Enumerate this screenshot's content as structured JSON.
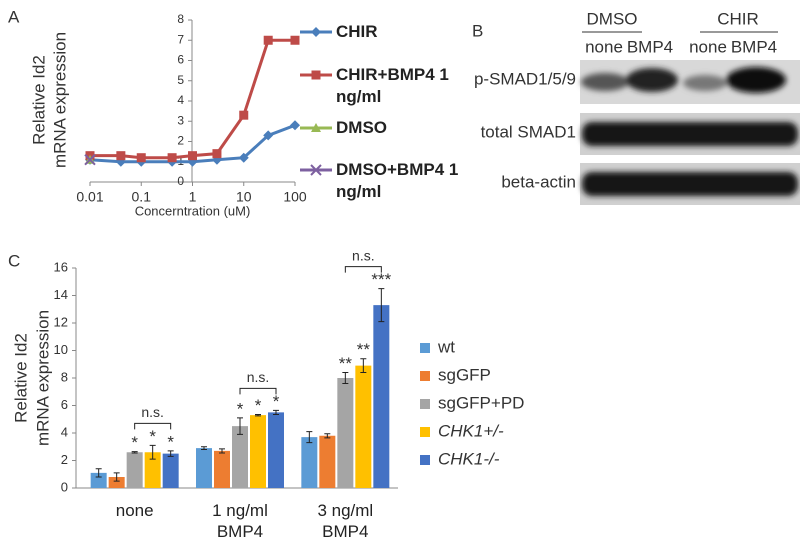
{
  "panels": [
    "A",
    "B",
    "C"
  ],
  "chart_data": [
    {
      "type": "line",
      "xlabel": "Concerntration (uM)",
      "ylabel": [
        "Relative Id2",
        "mRNA expression"
      ],
      "x": [
        0.01,
        0.04,
        0.1,
        0.4,
        1,
        3,
        10,
        30,
        100
      ],
      "xscale": "log",
      "xlim": [
        0.01,
        100
      ],
      "xticks": [
        0.01,
        0.1,
        1,
        10,
        100
      ],
      "ylim": [
        0,
        8
      ],
      "yticks": [
        0,
        1,
        2,
        3,
        4,
        5,
        6,
        7,
        8
      ],
      "legend": "right",
      "series": [
        {
          "name": "CHIR",
          "color": "#4a7ebb",
          "marker": "diamond",
          "values": [
            1.1,
            1.0,
            1.0,
            1.0,
            1.0,
            1.1,
            1.2,
            2.3,
            2.8
          ]
        },
        {
          "name": "CHIR+BMP4 1 ng/ml",
          "color": "#be4b48",
          "marker": "square",
          "values": [
            1.3,
            1.3,
            1.2,
            1.2,
            1.3,
            1.4,
            3.3,
            7.0,
            7.0
          ]
        },
        {
          "name": "DMSO",
          "color": "#98b954",
          "marker": "triangle",
          "values": [
            1.1,
            null,
            null,
            null,
            null,
            null,
            null,
            null,
            null
          ]
        },
        {
          "name": "DMSO+BMP4 1 ng/ml",
          "color": "#7d60a0",
          "marker": "x",
          "values": [
            1.1,
            null,
            null,
            null,
            null,
            null,
            null,
            null,
            null
          ]
        }
      ]
    },
    {
      "type": "bar",
      "ylabel": [
        "Relative Id2",
        "mRNA expression"
      ],
      "categories": [
        "none",
        "1 ng/ml BMP4",
        "3 ng/ml BMP4"
      ],
      "ylim": [
        0,
        16
      ],
      "yticks": [
        0,
        2,
        4,
        6,
        8,
        10,
        12,
        14,
        16
      ],
      "legend": "right",
      "annotations": [
        "n.s.",
        "n.s.",
        "n.s."
      ],
      "series": [
        {
          "name": "wt",
          "color": "#5b9bd5",
          "values": [
            1.1,
            2.9,
            3.7
          ],
          "errors": [
            0.3,
            0.1,
            0.4
          ]
        },
        {
          "name": "sgGFP",
          "color": "#ed7d31",
          "values": [
            0.8,
            2.7,
            3.8
          ],
          "errors": [
            0.3,
            0.15,
            0.15
          ]
        },
        {
          "name": "sgGFP+PD",
          "color": "#a5a5a5",
          "values": [
            2.6,
            4.5,
            8.0
          ],
          "errors": [
            0.05,
            0.6,
            0.4
          ],
          "significance": [
            "*",
            "*",
            "**"
          ]
        },
        {
          "name": "CHK1+/-",
          "color": "#ffc000",
          "values": [
            2.6,
            5.3,
            8.9
          ],
          "errors": [
            0.5,
            0.05,
            0.5
          ],
          "significance": [
            "*",
            "*",
            "**"
          ]
        },
        {
          "name": "CHK1-/-",
          "color": "#4472c4",
          "values": [
            2.5,
            5.5,
            13.3
          ],
          "errors": [
            0.2,
            0.15,
            1.2
          ],
          "significance": [
            "*",
            "*",
            "***"
          ]
        }
      ]
    }
  ],
  "blot": {
    "groups": [
      "DMSO",
      "CHIR"
    ],
    "lanes": [
      "none",
      "BMP4",
      "none",
      "BMP4"
    ],
    "rows": [
      "p-SMAD1/5/9",
      "total SMAD1",
      "beta-actin"
    ]
  }
}
